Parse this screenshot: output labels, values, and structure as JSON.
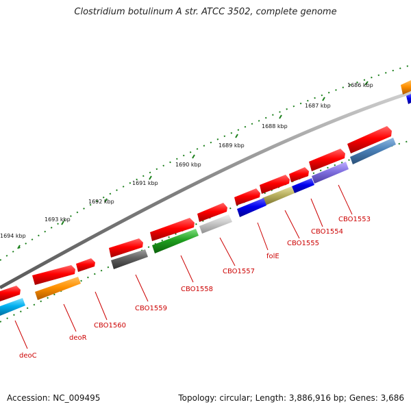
{
  "title": "Clostridium botulinum A str. ATCC 3502, complete genome",
  "footer": {
    "accession": "Accession: NC_009495",
    "summary": "Topology: circular; Length: 3,886,916 bp; Genes: 3,686"
  },
  "colors": {
    "backbone": "#8c8c8c",
    "tick": "#1a7f1a",
    "label_line": "#cc0000",
    "label_text": "#cc0000"
  },
  "ticks": [
    {
      "kbp": 1686,
      "label": "1686 kbp"
    },
    {
      "kbp": 1687,
      "label": "1687 kbp"
    },
    {
      "kbp": 1688,
      "label": "1688 kbp"
    },
    {
      "kbp": 1689,
      "label": "1689 kbp"
    },
    {
      "kbp": 1690,
      "label": "1690 kbp"
    },
    {
      "kbp": 1691,
      "label": "1691 kbp"
    },
    {
      "kbp": 1692,
      "label": "1692 kbp"
    },
    {
      "kbp": 1693,
      "label": "1693 kbp"
    },
    {
      "kbp": 1694,
      "label": "1694 kbp"
    }
  ],
  "gene_labels": [
    "CBO1553",
    "CBO1554",
    "CBO1555",
    "folE",
    "CBO1557",
    "CBO1558",
    "CBO1559",
    "CBO1560",
    "deoR",
    "deoC"
  ]
}
